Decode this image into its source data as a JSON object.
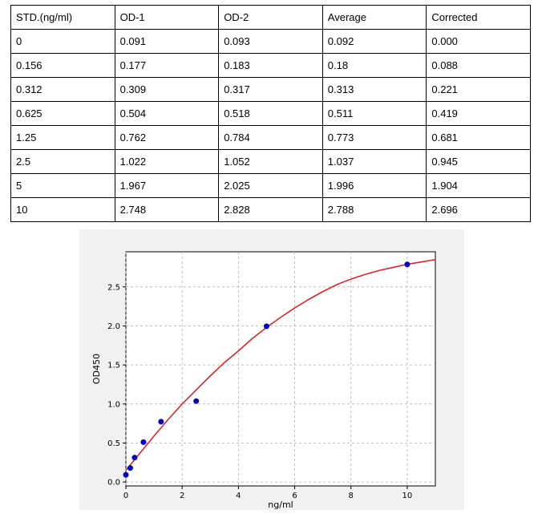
{
  "table": {
    "headers": [
      "STD.(ng/ml)",
      "OD-1",
      "OD-2",
      "Average",
      "Corrected"
    ],
    "rows": [
      [
        "0",
        "0.091",
        "0.093",
        "0.092",
        "0.000"
      ],
      [
        "0.156",
        "0.177",
        "0.183",
        "0.18",
        "0.088"
      ],
      [
        "0.312",
        "0.309",
        "0.317",
        "0.313",
        "0.221"
      ],
      [
        "0.625",
        "0.504",
        "0.518",
        "0.511",
        "0.419"
      ],
      [
        "1.25",
        "0.762",
        "0.784",
        "0.773",
        "0.681"
      ],
      [
        "2.5",
        "1.022",
        "1.052",
        "1.037",
        "0.945"
      ],
      [
        "5",
        "1.967",
        "2.025",
        "1.996",
        "1.904"
      ],
      [
        "10",
        "2.748",
        "2.828",
        "2.788",
        "2.696"
      ]
    ]
  },
  "chart_data": {
    "type": "scatter",
    "title": "",
    "xlabel": "ng/ml",
    "ylabel": "OD450",
    "xlim": [
      0,
      11
    ],
    "ylim": [
      -0.05,
      2.95
    ],
    "xticks": [
      0,
      2,
      4,
      6,
      8,
      10
    ],
    "xtick_labels": [
      "0",
      "2",
      "4",
      "6",
      "8",
      "10"
    ],
    "yticks": [
      0.0,
      0.5,
      1.0,
      1.5,
      2.0,
      2.5
    ],
    "ytick_labels": [
      "0.0",
      "0.5",
      "1.0",
      "1.5",
      "2.0",
      "2.5"
    ],
    "grid": true,
    "series": [
      {
        "type": "scatter",
        "color": "#0000cc",
        "x": [
          0,
          0.156,
          0.312,
          0.625,
          1.25,
          2.5,
          5,
          10
        ],
        "y": [
          0.092,
          0.18,
          0.313,
          0.511,
          0.773,
          1.037,
          1.996,
          2.788
        ]
      },
      {
        "type": "line",
        "color": "#d62728",
        "x": [
          0,
          0.5,
          1,
          1.5,
          2,
          2.5,
          3,
          3.5,
          4,
          4.5,
          5,
          5.5,
          6,
          6.5,
          7,
          7.5,
          8,
          8.5,
          9,
          9.5,
          10,
          10.5,
          11
        ],
        "y": [
          0.15,
          0.37,
          0.59,
          0.8,
          1.0,
          1.18,
          1.36,
          1.53,
          1.68,
          1.84,
          1.98,
          2.11,
          2.23,
          2.34,
          2.44,
          2.53,
          2.6,
          2.66,
          2.71,
          2.75,
          2.79,
          2.82,
          2.85
        ]
      }
    ]
  }
}
